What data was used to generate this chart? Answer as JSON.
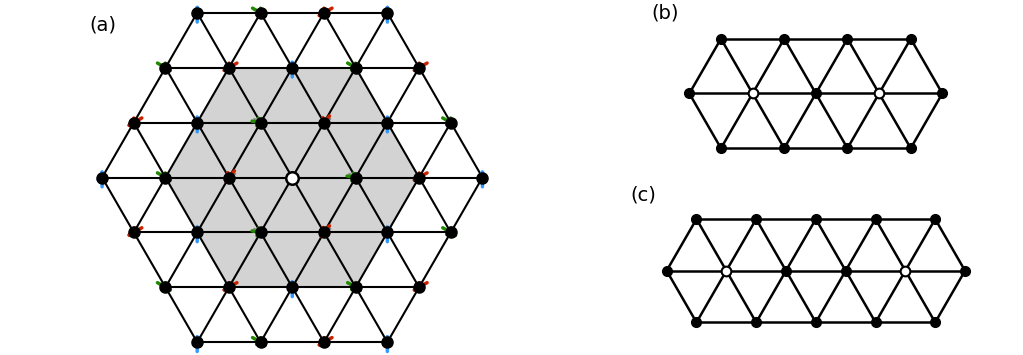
{
  "bg_color": "#ffffff",
  "hex_fill": "#d3d3d3",
  "node_color": "#000000",
  "impurity_color": "#ffffff",
  "arrow_blue": "#3399ff",
  "arrow_red": "#cc2200",
  "arrow_green": "#228800",
  "arrow_gray": "#888888",
  "label_a": "(a)",
  "label_b": "(b)",
  "label_c": "(c)",
  "sublattice_angles": [
    90.0,
    210.0,
    330.0
  ],
  "sublattice_colors": [
    "#3399ff",
    "#cc2200",
    "#228800"
  ]
}
